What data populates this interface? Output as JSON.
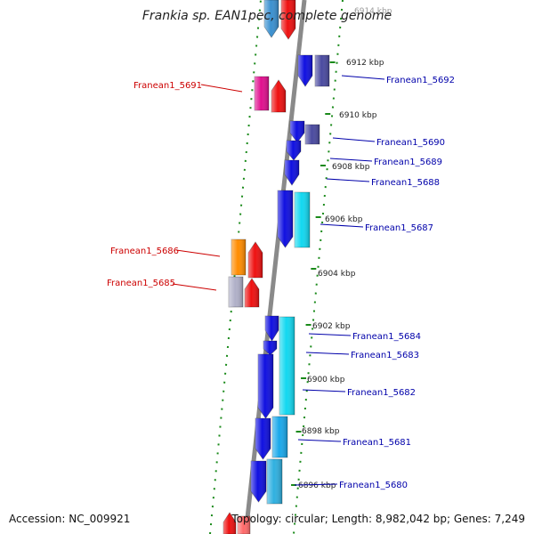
{
  "title": "Frankia sp. EAN1pec, complete genome",
  "accession_text": "Accession: NC_009921",
  "topology_text": "Topology: circular; Length: 8,982,042 bp; Genes: 7,249",
  "top_cut_label": "6914 kbp",
  "kbp_ticks": [
    "6912 kbp",
    "6910 kbp",
    "6908 kbp",
    "6906 kbp",
    "6904 kbp",
    "6902 kbp",
    "6900 kbp",
    "6898 kbp",
    "6896 kbp"
  ],
  "left_genes": [
    "Franean1_5691",
    "Franean1_5686",
    "Franean1_5685"
  ],
  "right_genes": [
    "Franean1_5692",
    "Franean1_5690",
    "Franean1_5689",
    "Franean1_5688",
    "Franean1_5687",
    "Franean1_5684",
    "Franean1_5683",
    "Franean1_5682",
    "Franean1_5681",
    "Franean1_5680"
  ],
  "colors": {
    "backbone": "#8a8a8a",
    "dots": "#1a8a1a",
    "left_label": "#cc0000",
    "right_label": "#0000aa",
    "blue": "#1010e0",
    "cyan": "#12d8f0",
    "red": "#ee1111",
    "magenta": "#e0108e",
    "orange": "#ff8c00",
    "slate": "#4a4aa0",
    "steel": "#3a90d0"
  }
}
